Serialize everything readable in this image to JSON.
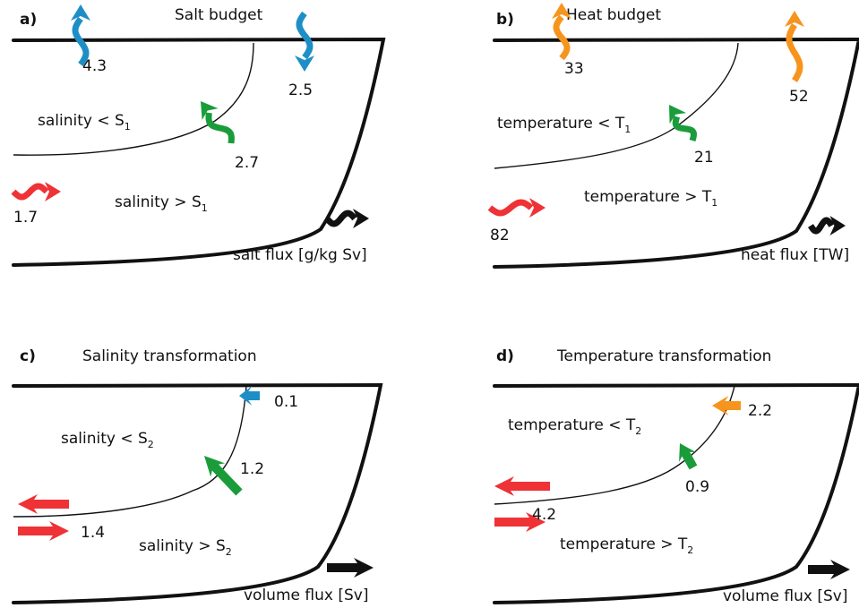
{
  "panels": [
    {
      "letter": "a)",
      "title": "Salt budget",
      "regions": [
        {
          "text": "salinity < S",
          "sub": "1"
        },
        {
          "text": "salinity > S",
          "sub": "1"
        }
      ],
      "values": [
        "4.3",
        "2.5",
        "2.7",
        "1.7"
      ],
      "legend": "salt flux [g/kg Sv]"
    },
    {
      "letter": "b)",
      "title": "Heat budget",
      "regions": [
        {
          "text": "temperature < T",
          "sub": "1"
        },
        {
          "text": "temperature > T",
          "sub": "1"
        }
      ],
      "values": [
        "33",
        "52",
        "21",
        "82"
      ],
      "legend": "heat flux [TW]"
    },
    {
      "letter": "c)",
      "title": "Salinity transformation",
      "regions": [
        {
          "text": "salinity < S",
          "sub": "2"
        },
        {
          "text": "salinity > S",
          "sub": "2"
        }
      ],
      "values": [
        "0.1",
        "1.2",
        "1.4"
      ],
      "legend": "volume flux [Sv]"
    },
    {
      "letter": "d)",
      "title": "Temperature transformation",
      "regions": [
        {
          "text": "temperature < T",
          "sub": "2"
        },
        {
          "text": "temperature > T",
          "sub": "2"
        }
      ],
      "values": [
        "2.2",
        "0.9",
        "4.2"
      ],
      "legend": "volume flux [Sv]"
    }
  ]
}
